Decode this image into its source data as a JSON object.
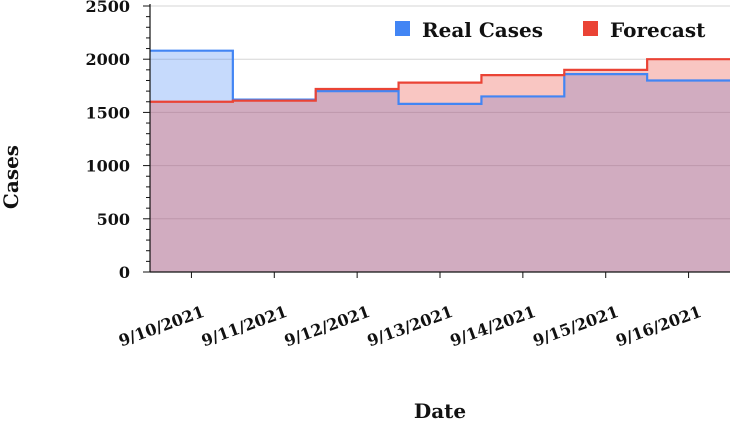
{
  "chart_data": {
    "type": "area",
    "step": true,
    "categories": [
      "9/10/2021",
      "9/11/2021",
      "9/12/2021",
      "9/13/2021",
      "9/14/2021",
      "9/15/2021",
      "9/16/2021"
    ],
    "series": [
      {
        "name": "Real Cases",
        "color": "#4285f4",
        "values": [
          2080,
          1620,
          1700,
          1580,
          1650,
          1860,
          1800
        ]
      },
      {
        "name": "Forecast",
        "color": "#ea4335",
        "values": [
          1600,
          1610,
          1720,
          1780,
          1850,
          1900,
          2000
        ]
      }
    ],
    "xlabel": "Date",
    "ylabel": "Cases",
    "ylim": [
      0,
      2500
    ],
    "yticks": [
      0,
      500,
      1000,
      1500,
      2000,
      2500
    ],
    "grid": true,
    "legend_position": "top-right"
  }
}
